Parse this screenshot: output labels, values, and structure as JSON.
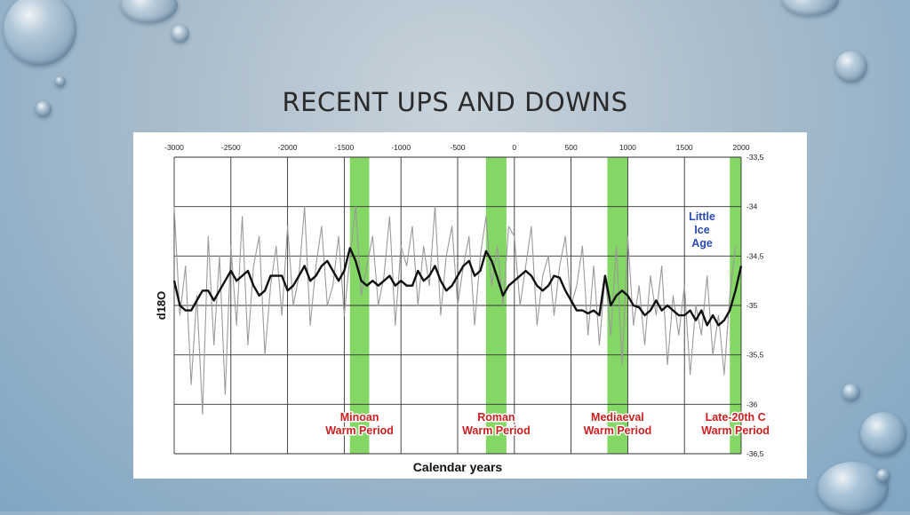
{
  "slide": {
    "title": "RECENT UPS AND DOWNS"
  },
  "chart_data": {
    "type": "line",
    "title": "",
    "xlabel": "Calendar years",
    "ylabel": "d18O",
    "xlim": [
      -3000,
      2000
    ],
    "ylim": [
      -36.5,
      -33.5
    ],
    "y_inverted": true,
    "x_ticks": [
      "-3000",
      "-2500",
      "-2000",
      "-1500",
      "-1000",
      "-500",
      "0",
      "500",
      "1000",
      "1500",
      "2000"
    ],
    "y_ticks": [
      "-33,5",
      "-34",
      "-34,5",
      "-35",
      "-35,5",
      "-36",
      "-36,5"
    ],
    "grid": true,
    "series": [
      {
        "role": "raw",
        "color": "#9a9a9a",
        "x": [
          -3000,
          -2950,
          -2900,
          -2850,
          -2800,
          -2750,
          -2700,
          -2650,
          -2600,
          -2550,
          -2500,
          -2450,
          -2400,
          -2350,
          -2300,
          -2250,
          -2200,
          -2150,
          -2100,
          -2050,
          -2000,
          -1950,
          -1900,
          -1850,
          -1800,
          -1750,
          -1700,
          -1650,
          -1600,
          -1550,
          -1500,
          -1450,
          -1400,
          -1350,
          -1300,
          -1250,
          -1200,
          -1150,
          -1100,
          -1050,
          -1000,
          -950,
          -900,
          -850,
          -800,
          -750,
          -700,
          -650,
          -600,
          -550,
          -500,
          -450,
          -400,
          -350,
          -300,
          -250,
          -200,
          -150,
          -100,
          -50,
          0,
          50,
          100,
          150,
          200,
          250,
          300,
          350,
          400,
          450,
          500,
          550,
          600,
          650,
          700,
          750,
          800,
          850,
          900,
          950,
          1000,
          1050,
          1100,
          1150,
          1200,
          1250,
          1300,
          1350,
          1400,
          1450,
          1500,
          1550,
          1600,
          1650,
          1700,
          1750,
          1800,
          1850,
          1900,
          1950
        ],
        "values": [
          -34.0,
          -35.1,
          -34.6,
          -35.8,
          -34.9,
          -36.1,
          -34.3,
          -35.4,
          -34.5,
          -35.9,
          -34.4,
          -35.2,
          -34.1,
          -35.4,
          -34.6,
          -34.3,
          -35.5,
          -34.8,
          -34.4,
          -35.1,
          -34.2,
          -35.0,
          -34.7,
          -34.0,
          -35.2,
          -34.6,
          -34.2,
          -35.0,
          -34.8,
          -34.3,
          -35.1,
          -34.5,
          -34.0,
          -34.9,
          -34.6,
          -34.3,
          -35.0,
          -34.7,
          -34.1,
          -35.2,
          -34.4,
          -34.6,
          -34.2,
          -35.0,
          -34.4,
          -34.8,
          -34.0,
          -35.1,
          -34.5,
          -34.2,
          -35.0,
          -34.6,
          -34.3,
          -35.2,
          -34.5,
          -34.1,
          -34.8,
          -34.4,
          -35.0,
          -34.2,
          -34.3,
          -35.0,
          -34.6,
          -34.2,
          -35.2,
          -34.7,
          -34.5,
          -35.1,
          -34.6,
          -34.3,
          -35.0,
          -34.8,
          -34.4,
          -35.3,
          -34.6,
          -35.4,
          -34.7,
          -35.3,
          -34.4,
          -35.6,
          -34.3,
          -35.2,
          -34.8,
          -35.4,
          -34.7,
          -35.1,
          -34.6,
          -35.6,
          -34.9,
          -35.3,
          -34.8,
          -35.7,
          -35.0,
          -35.3,
          -34.7,
          -35.5,
          -35.1,
          -35.7,
          -34.9,
          -34.4
        ]
      },
      {
        "role": "smoothed",
        "color": "#111111",
        "x": [
          -3000,
          -2950,
          -2900,
          -2850,
          -2800,
          -2750,
          -2700,
          -2650,
          -2600,
          -2550,
          -2500,
          -2450,
          -2400,
          -2350,
          -2300,
          -2250,
          -2200,
          -2150,
          -2100,
          -2050,
          -2000,
          -1950,
          -1900,
          -1850,
          -1800,
          -1750,
          -1700,
          -1650,
          -1600,
          -1550,
          -1500,
          -1450,
          -1400,
          -1350,
          -1300,
          -1250,
          -1200,
          -1150,
          -1100,
          -1050,
          -1000,
          -950,
          -900,
          -850,
          -800,
          -750,
          -700,
          -650,
          -600,
          -550,
          -500,
          -450,
          -400,
          -350,
          -300,
          -250,
          -200,
          -150,
          -100,
          -50,
          0,
          50,
          100,
          150,
          200,
          250,
          300,
          350,
          400,
          450,
          500,
          550,
          600,
          650,
          700,
          750,
          800,
          850,
          900,
          950,
          1000,
          1050,
          1100,
          1150,
          1200,
          1250,
          1300,
          1350,
          1400,
          1450,
          1500,
          1550,
          1600,
          1650,
          1700,
          1750,
          1800,
          1850,
          1900,
          1950,
          2000
        ],
        "values": [
          -34.75,
          -35.0,
          -35.05,
          -35.05,
          -34.95,
          -34.85,
          -34.85,
          -34.95,
          -34.85,
          -34.75,
          -34.65,
          -34.75,
          -34.7,
          -34.65,
          -34.8,
          -34.9,
          -34.85,
          -34.7,
          -34.7,
          -34.7,
          -34.85,
          -34.8,
          -34.7,
          -34.6,
          -34.75,
          -34.7,
          -34.6,
          -34.55,
          -34.65,
          -34.75,
          -34.65,
          -34.42,
          -34.55,
          -34.75,
          -34.8,
          -34.75,
          -34.8,
          -34.75,
          -34.7,
          -34.8,
          -34.75,
          -34.8,
          -34.8,
          -34.65,
          -34.75,
          -34.7,
          -34.6,
          -34.75,
          -34.85,
          -34.8,
          -34.7,
          -34.6,
          -34.55,
          -34.7,
          -34.65,
          -34.45,
          -34.55,
          -34.72,
          -34.9,
          -34.8,
          -34.75,
          -34.7,
          -34.65,
          -34.7,
          -34.8,
          -34.85,
          -34.8,
          -34.7,
          -34.72,
          -34.85,
          -34.95,
          -35.05,
          -35.05,
          -35.08,
          -35.05,
          -35.1,
          -34.7,
          -35.0,
          -34.9,
          -34.85,
          -34.9,
          -35.0,
          -35.02,
          -35.1,
          -35.05,
          -34.95,
          -35.05,
          -35.0,
          -35.05,
          -35.1,
          -35.1,
          -35.05,
          -35.15,
          -35.05,
          -35.2,
          -35.1,
          -35.2,
          -35.15,
          -35.05,
          -34.85,
          -34.6
        ]
      }
    ],
    "highlight_bands": [
      {
        "from": -1450,
        "to": -1280,
        "color": "#6fcf4a",
        "label_lines": [
          "Minoan",
          "Warm Period"
        ]
      },
      {
        "from": -250,
        "to": -70,
        "color": "#6fcf4a",
        "label_lines": [
          "Roman",
          "Warm Period"
        ]
      },
      {
        "from": 820,
        "to": 1000,
        "color": "#6fcf4a",
        "label_lines": [
          "Mediaeval",
          "Warm Period"
        ]
      },
      {
        "from": 1900,
        "to": 2000,
        "color": "#6fcf4a",
        "label_lines": [
          "Late-20th C",
          "Warm Period"
        ]
      }
    ],
    "annotations": [
      {
        "text_lines": [
          "Little",
          "Ice",
          "Age"
        ],
        "color": "#2a4bb5"
      }
    ],
    "label_color": "#cc1f1f"
  }
}
